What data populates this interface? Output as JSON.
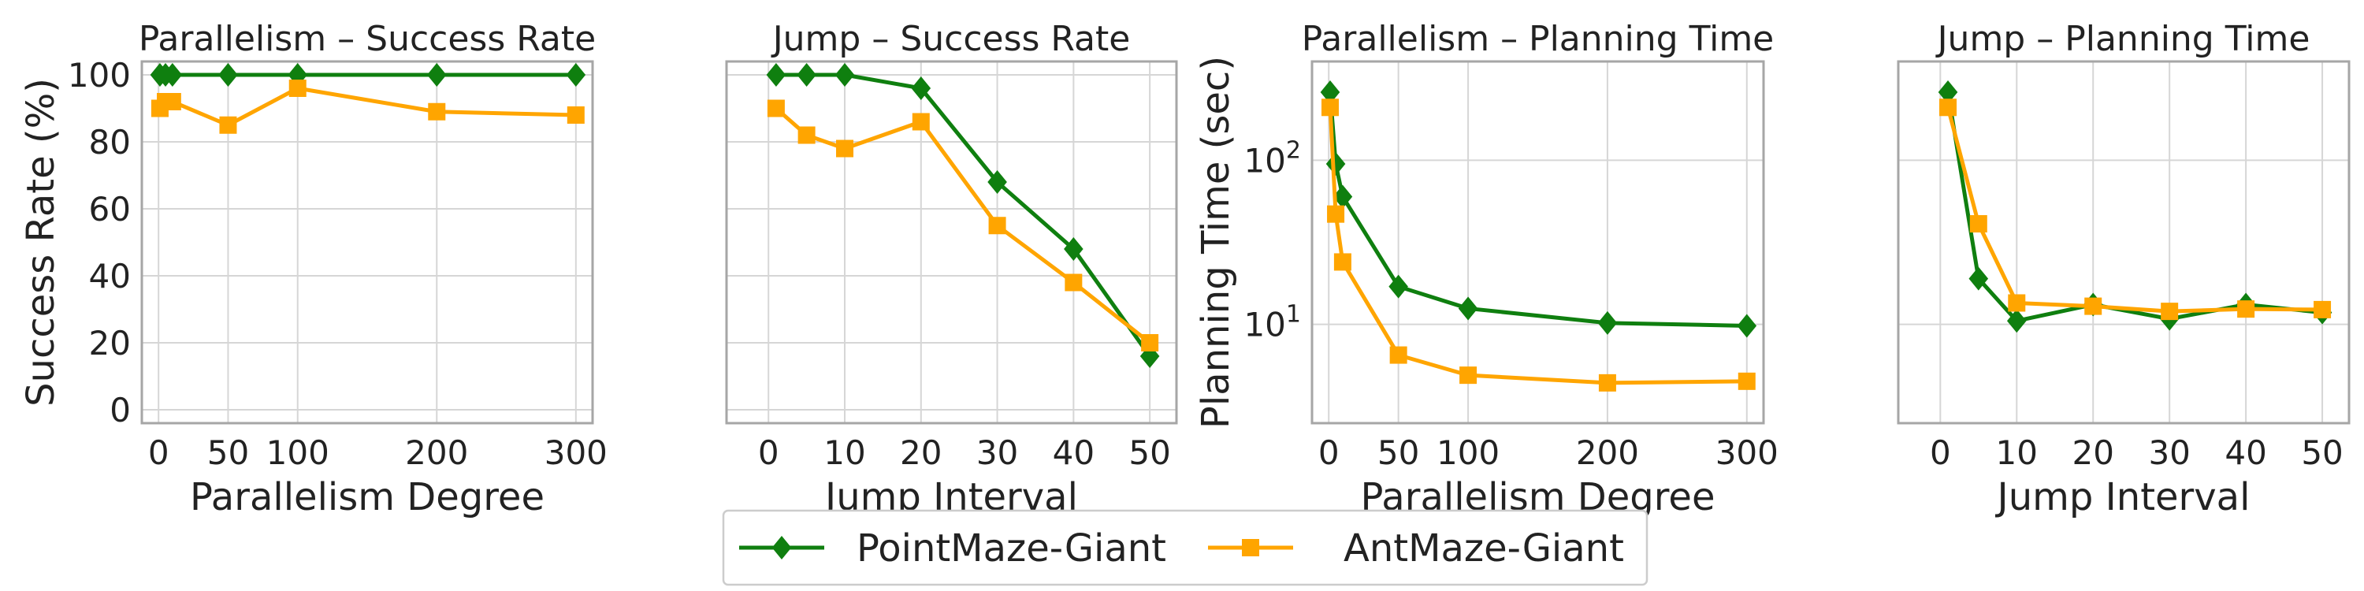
{
  "colors": {
    "point": "#0f7f0f",
    "ant": "#ffa500",
    "grid": "#d6d6d6",
    "frame": "#a6a6a6"
  },
  "legend": {
    "items": [
      {
        "label": "PointMaze-Giant",
        "color": "#0f7f0f",
        "marker": "diamond"
      },
      {
        "label": "AntMaze-Giant",
        "color": "#ffa500",
        "marker": "square"
      }
    ]
  },
  "chart_data": [
    {
      "type": "line",
      "title": "Parallelism – Success Rate",
      "xlabel": "Parallelism Degree",
      "ylabel": "Success Rate (%)",
      "xlim": [
        -12,
        312
      ],
      "ylim": [
        -4,
        104
      ],
      "xticks": [
        0,
        50,
        100,
        200,
        300
      ],
      "yticks": [
        0,
        20,
        40,
        60,
        80,
        100
      ],
      "yscale": "linear",
      "show_yticklabels": true,
      "series": [
        {
          "name": "PointMaze-Giant",
          "x": [
            1,
            5,
            10,
            50,
            100,
            200,
            300
          ],
          "y": [
            100,
            100,
            100,
            100,
            100,
            100,
            100
          ]
        },
        {
          "name": "AntMaze-Giant",
          "x": [
            1,
            5,
            10,
            50,
            100,
            200,
            300
          ],
          "y": [
            90,
            92,
            92,
            85,
            96,
            89,
            88
          ]
        }
      ]
    },
    {
      "type": "line",
      "title": "Jump – Success Rate",
      "xlabel": "Jump Interval",
      "ylabel": "",
      "xlim": [
        -5.5,
        53.5
      ],
      "ylim": [
        -4,
        104
      ],
      "xticks": [
        0,
        10,
        20,
        30,
        40,
        50
      ],
      "yticks": [
        0,
        20,
        40,
        60,
        80,
        100
      ],
      "yscale": "linear",
      "show_yticklabels": false,
      "series": [
        {
          "name": "PointMaze-Giant",
          "x": [
            1,
            5,
            10,
            20,
            30,
            40,
            50
          ],
          "y": [
            100,
            100,
            100,
            96,
            68,
            48,
            16
          ]
        },
        {
          "name": "AntMaze-Giant",
          "x": [
            1,
            5,
            10,
            20,
            30,
            40,
            50
          ],
          "y": [
            90,
            82,
            78,
            86,
            55,
            38,
            20
          ]
        }
      ]
    },
    {
      "type": "line",
      "title": "Parallelism – Planning Time",
      "xlabel": "Parallelism Degree",
      "ylabel": "Planning Time (sec)",
      "xlim": [
        -12,
        312
      ],
      "ylim": [
        2.5,
        400
      ],
      "xticks": [
        0,
        50,
        100,
        200,
        300
      ],
      "yticks": [
        10,
        100
      ],
      "yticklabels": [
        {
          "base": "10",
          "exp": "1"
        },
        {
          "base": "10",
          "exp": "2"
        }
      ],
      "yscale": "log",
      "show_yticklabels": true,
      "series": [
        {
          "name": "PointMaze-Giant",
          "x": [
            1,
            5,
            10,
            50,
            100,
            200,
            300
          ],
          "y": [
            260,
            95,
            60,
            17,
            12.5,
            10.2,
            9.8
          ]
        },
        {
          "name": "AntMaze-Giant",
          "x": [
            1,
            5,
            10,
            50,
            100,
            200,
            300
          ],
          "y": [
            210,
            47,
            24,
            6.5,
            4.9,
            4.4,
            4.5
          ]
        }
      ]
    },
    {
      "type": "line",
      "title": "Jump – Planning Time",
      "xlabel": "Jump Interval",
      "ylabel": "",
      "xlim": [
        -5.5,
        53.5
      ],
      "ylim": [
        2.5,
        400
      ],
      "xticks": [
        0,
        10,
        20,
        30,
        40,
        50
      ],
      "yticks": [
        10,
        100
      ],
      "yscale": "log",
      "show_yticklabels": false,
      "series": [
        {
          "name": "PointMaze-Giant",
          "x": [
            1,
            5,
            10,
            20,
            30,
            40,
            50
          ],
          "y": [
            260,
            19,
            10.5,
            13.2,
            10.8,
            13.2,
            11.8
          ]
        },
        {
          "name": "AntMaze-Giant",
          "x": [
            1,
            5,
            10,
            20,
            30,
            40,
            50
          ],
          "y": [
            210,
            41,
            13.5,
            12.9,
            12,
            12.4,
            12.3
          ]
        }
      ]
    }
  ]
}
